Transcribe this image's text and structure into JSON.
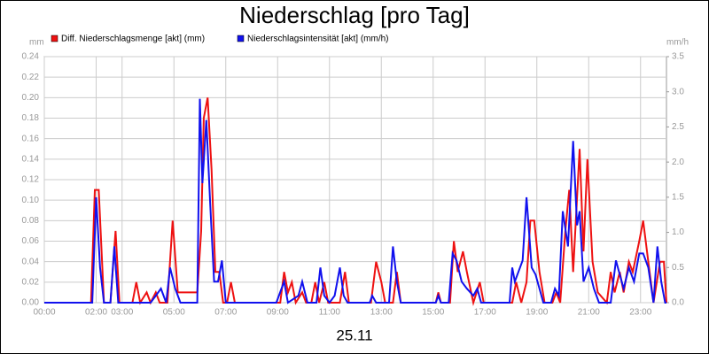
{
  "chart_data": {
    "type": "line",
    "title": "Niederschlag [pro Tag]",
    "ylabel": "mm",
    "y2label": "mm/h",
    "xlabel": "25.11",
    "xlim": [
      0,
      24
    ],
    "xticks": [
      {
        "value": 0,
        "label": "00:00"
      },
      {
        "value": 2,
        "label": "02:00"
      },
      {
        "value": 3,
        "label": "03:00"
      },
      {
        "value": 5,
        "label": "05:00"
      },
      {
        "value": 7,
        "label": "07:00"
      },
      {
        "value": 9,
        "label": "09:00"
      },
      {
        "value": 11,
        "label": "11:00"
      },
      {
        "value": 13,
        "label": "13:00"
      },
      {
        "value": 15,
        "label": "15:00"
      },
      {
        "value": 17,
        "label": "17:00"
      },
      {
        "value": 19,
        "label": "19:00"
      },
      {
        "value": 21,
        "label": "21:00"
      },
      {
        "value": 23,
        "label": "23:00"
      }
    ],
    "ylim": [
      0,
      0.24
    ],
    "yticks": [
      {
        "value": 0,
        "label": "0.00"
      },
      {
        "value": 0.02,
        "label": "0.02"
      },
      {
        "value": 0.04,
        "label": "0.04"
      },
      {
        "value": 0.06,
        "label": "0.06"
      },
      {
        "value": 0.08,
        "label": "0.08"
      },
      {
        "value": 0.1,
        "label": "0.10"
      },
      {
        "value": 0.12,
        "label": "0.12"
      },
      {
        "value": 0.14,
        "label": "0.14"
      },
      {
        "value": 0.16,
        "label": "0.16"
      },
      {
        "value": 0.18,
        "label": "0.18"
      },
      {
        "value": 0.2,
        "label": "0.20"
      },
      {
        "value": 0.22,
        "label": "0.22"
      },
      {
        "value": 0.24,
        "label": "0.24"
      }
    ],
    "y2lim": [
      0,
      3.5
    ],
    "y2ticks": [
      {
        "value": 0,
        "label": "0.0"
      },
      {
        "value": 0.5,
        "label": "0.5"
      },
      {
        "value": 1,
        "label": "1.0"
      },
      {
        "value": 1.5,
        "label": "1.5"
      },
      {
        "value": 2,
        "label": "2.0"
      },
      {
        "value": 2.5,
        "label": "2.5"
      },
      {
        "value": 3,
        "label": "3.0"
      },
      {
        "value": 3.5,
        "label": "3.5"
      }
    ],
    "grid": true,
    "series": [
      {
        "name": "Diff. Niederschlagsmenge [akt] (mm)",
        "color": "#ee1111",
        "axis": "y",
        "x": [
          0,
          1.8,
          1.95,
          2.1,
          2.3,
          2.55,
          2.75,
          2.9,
          3.4,
          3.55,
          3.7,
          3.95,
          4.1,
          4.3,
          4.45,
          4.75,
          4.95,
          5.15,
          5.4,
          5.6,
          5.9,
          6.05,
          6.15,
          6.3,
          6.45,
          6.6,
          6.75,
          6.9,
          7.05,
          7.2,
          7.35,
          9.1,
          9.25,
          9.4,
          9.55,
          9.7,
          9.95,
          10.1,
          10.3,
          10.45,
          10.6,
          10.8,
          10.95,
          11.4,
          11.6,
          11.75,
          12.6,
          12.8,
          13.0,
          13.15,
          13.45,
          13.6,
          13.75,
          15.1,
          15.2,
          15.3,
          15.65,
          15.8,
          15.95,
          16.15,
          16.3,
          16.55,
          16.8,
          16.95,
          18.05,
          18.2,
          18.4,
          18.6,
          18.75,
          18.9,
          19.1,
          19.3,
          19.6,
          19.75,
          19.9,
          20.1,
          20.25,
          20.4,
          20.65,
          20.8,
          20.95,
          21.15,
          21.35,
          21.7,
          21.85,
          22.0,
          22.2,
          22.35,
          22.55,
          22.7,
          22.95,
          23.1,
          23.3,
          23.5,
          23.75,
          23.9,
          24
        ],
        "values": [
          0,
          0,
          0.11,
          0.11,
          0,
          0,
          0.07,
          0,
          0,
          0.02,
          0,
          0.01,
          0,
          0.01,
          0,
          0,
          0.08,
          0.01,
          0.01,
          0.01,
          0.01,
          0.07,
          0.18,
          0.2,
          0.13,
          0.03,
          0.03,
          0,
          0,
          0.02,
          0,
          0,
          0.03,
          0.01,
          0.02,
          0,
          0.01,
          0,
          0,
          0.02,
          0,
          0.02,
          0,
          0,
          0.03,
          0,
          0,
          0.04,
          0.02,
          0,
          0,
          0.03,
          0,
          0,
          0.01,
          0,
          0,
          0.06,
          0.03,
          0.05,
          0.03,
          0,
          0.02,
          0,
          0,
          0.02,
          0,
          0.02,
          0.08,
          0.08,
          0.03,
          0,
          0,
          0.01,
          0,
          0.07,
          0.11,
          0.03,
          0.15,
          0.05,
          0.14,
          0.04,
          0.01,
          0,
          0.03,
          0.01,
          0.03,
          0.01,
          0.04,
          0.03,
          0.06,
          0.08,
          0.04,
          0,
          0.04,
          0.04,
          0
        ]
      },
      {
        "name": "Niederschlagsintensität [akt] (mm/h)",
        "color": "#1111ee",
        "axis": "y2",
        "x": [
          0,
          1.85,
          2.0,
          2.15,
          2.3,
          2.55,
          2.7,
          2.85,
          4.1,
          4.3,
          4.5,
          4.7,
          4.85,
          5.05,
          5.25,
          5.9,
          6.0,
          6.1,
          6.25,
          6.4,
          6.55,
          6.7,
          6.85,
          7.0,
          8.95,
          9.05,
          9.25,
          9.4,
          9.8,
          9.95,
          10.15,
          10.5,
          10.65,
          10.8,
          11.0,
          11.2,
          11.4,
          11.55,
          11.7,
          12.55,
          12.65,
          12.8,
          13.3,
          13.45,
          13.6,
          13.75,
          15.1,
          15.2,
          15.3,
          15.6,
          15.75,
          15.9,
          16.1,
          16.3,
          16.55,
          16.7,
          16.85,
          17.95,
          18.05,
          18.15,
          18.45,
          18.6,
          18.8,
          18.95,
          19.1,
          19.25,
          19.55,
          19.7,
          19.85,
          20.0,
          20.2,
          20.4,
          20.55,
          20.65,
          20.8,
          21.0,
          21.2,
          21.4,
          21.85,
          22.05,
          22.2,
          22.35,
          22.55,
          22.75,
          22.95,
          23.1,
          23.3,
          23.5,
          23.65,
          23.8,
          23.95,
          24
        ],
        "values": [
          0,
          0,
          1.5,
          0.5,
          0,
          0,
          0.8,
          0,
          0,
          0.1,
          0.2,
          0,
          0.5,
          0.2,
          0,
          0,
          2.9,
          1.7,
          2.6,
          1.4,
          0.3,
          0.3,
          0.6,
          0,
          0,
          0.1,
          0.3,
          0,
          0.1,
          0.3,
          0,
          0,
          0.5,
          0.1,
          0,
          0.1,
          0.5,
          0.1,
          0,
          0,
          0.1,
          0,
          0,
          0.8,
          0.3,
          0,
          0,
          0.1,
          0,
          0,
          0.7,
          0.6,
          0.3,
          0.2,
          0.1,
          0.2,
          0,
          0,
          0.5,
          0.3,
          0.6,
          1.5,
          0.5,
          0.4,
          0.2,
          0,
          0,
          0.2,
          0.1,
          1.3,
          0.8,
          2.3,
          1.1,
          1.3,
          0.3,
          0.5,
          0.2,
          0,
          0,
          0.6,
          0.4,
          0.2,
          0.5,
          0.3,
          0.7,
          0.7,
          0.5,
          0,
          0.8,
          0.3,
          0,
          0
        ]
      }
    ]
  }
}
